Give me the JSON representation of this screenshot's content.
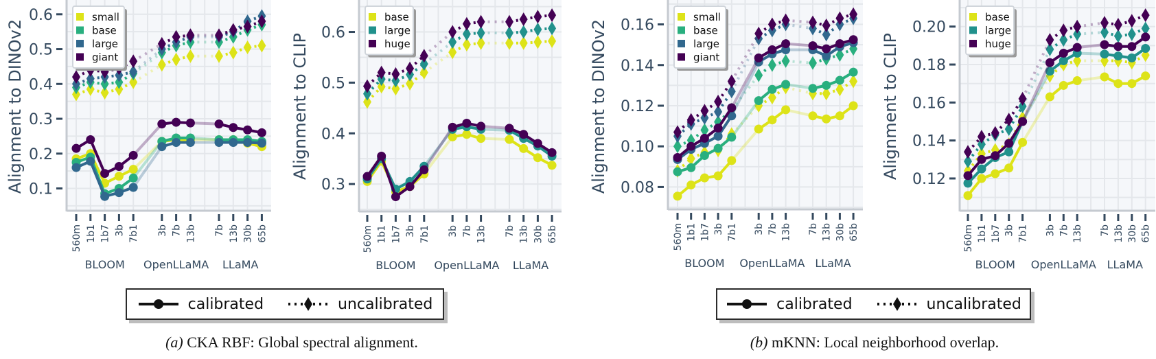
{
  "legend": {
    "calibrated": "calibrated",
    "uncalibrated": "uncalibrated"
  },
  "captions": [
    {
      "tag": "(a)",
      "text": "CKA RBF: Global spectral alignment."
    },
    {
      "tag": "(b)",
      "text": "mKNN: Local neighborhood overlap."
    }
  ],
  "chart_data": [
    {
      "type": "line",
      "ylabel": "Alignment to DINOv2",
      "ylim": [
        0.036,
        0.641
      ],
      "yticks": [
        "0.1",
        "0.2",
        "0.3",
        "0.4",
        "0.5",
        "0.6"
      ],
      "grid": true,
      "legend_position": "top-left",
      "groups": [
        {
          "name": "BLOOM",
          "categories": [
            "560m",
            "1b1",
            "1b7",
            "3b",
            "7b1"
          ]
        },
        {
          "name": "OpenLLaMA",
          "categories": [
            "3b",
            "7b",
            "13b"
          ]
        },
        {
          "name": "LLaMA",
          "categories": [
            "7b",
            "13b",
            "30b",
            "65b"
          ]
        }
      ],
      "series": [
        {
          "name": "small",
          "color": "#dde318",
          "calibrated": [
            0.185,
            0.2,
            0.115,
            0.135,
            0.155,
            0.235,
            0.24,
            0.24,
            0.24,
            0.24,
            0.23,
            0.22
          ],
          "uncalibrated": [
            0.37,
            0.385,
            0.375,
            0.385,
            0.405,
            0.455,
            0.47,
            0.48,
            0.48,
            0.49,
            0.505,
            0.51
          ]
        },
        {
          "name": "base",
          "color": "#29af7f",
          "calibrated": [
            0.175,
            0.19,
            0.085,
            0.1,
            0.13,
            0.235,
            0.245,
            0.245,
            0.24,
            0.24,
            0.24,
            0.235
          ],
          "uncalibrated": [
            0.39,
            0.405,
            0.4,
            0.405,
            0.43,
            0.49,
            0.51,
            0.52,
            0.52,
            0.535,
            0.555,
            0.57
          ]
        },
        {
          "name": "large",
          "color": "#31688e",
          "calibrated": [
            0.16,
            0.178,
            0.077,
            0.088,
            0.103,
            0.22,
            0.232,
            0.232,
            0.232,
            0.232,
            0.232,
            0.23
          ],
          "uncalibrated": [
            0.4,
            0.415,
            0.42,
            0.425,
            0.435,
            0.5,
            0.52,
            0.535,
            0.535,
            0.55,
            0.58,
            0.595
          ]
        },
        {
          "name": "giant",
          "color": "#440154",
          "calibrated": [
            0.215,
            0.24,
            0.143,
            0.163,
            0.195,
            0.285,
            0.29,
            0.288,
            0.285,
            0.275,
            0.268,
            0.26
          ],
          "uncalibrated": [
            0.42,
            0.44,
            0.435,
            0.445,
            0.465,
            0.515,
            0.535,
            0.54,
            0.54,
            0.555,
            0.565,
            0.58
          ]
        }
      ]
    },
    {
      "type": "line",
      "ylabel": "Alignment to CLIP",
      "ylim": [
        0.246,
        0.663
      ],
      "yticks": [
        "0.3",
        "0.4",
        "0.5",
        "0.6"
      ],
      "grid": true,
      "legend_position": "top-left",
      "groups": [
        {
          "name": "BLOOM",
          "categories": [
            "560m",
            "1b1",
            "1b7",
            "3b",
            "7b1"
          ]
        },
        {
          "name": "OpenLLaMA",
          "categories": [
            "3b",
            "7b",
            "13b"
          ]
        },
        {
          "name": "LLaMA",
          "categories": [
            "7b",
            "13b",
            "30b",
            "65b"
          ]
        }
      ],
      "series": [
        {
          "name": "base",
          "color": "#dde318",
          "calibrated": [
            0.305,
            0.345,
            0.285,
            0.295,
            0.32,
            0.393,
            0.398,
            0.39,
            0.388,
            0.37,
            0.352,
            0.337
          ],
          "uncalibrated": [
            0.462,
            0.492,
            0.488,
            0.498,
            0.52,
            0.56,
            0.575,
            0.578,
            0.578,
            0.578,
            0.58,
            0.582
          ]
        },
        {
          "name": "large",
          "color": "#21918c",
          "calibrated": [
            0.31,
            0.35,
            0.29,
            0.305,
            0.335,
            0.408,
            0.413,
            0.408,
            0.406,
            0.39,
            0.375,
            0.355
          ],
          "uncalibrated": [
            0.478,
            0.507,
            0.504,
            0.516,
            0.537,
            0.58,
            0.596,
            0.598,
            0.598,
            0.6,
            0.605,
            0.607
          ]
        },
        {
          "name": "huge",
          "color": "#440154",
          "calibrated": [
            0.315,
            0.355,
            0.275,
            0.295,
            0.328,
            0.412,
            0.42,
            0.414,
            0.41,
            0.398,
            0.38,
            0.362
          ],
          "uncalibrated": [
            0.493,
            0.52,
            0.517,
            0.528,
            0.553,
            0.6,
            0.616,
            0.62,
            0.62,
            0.625,
            0.63,
            0.633
          ]
        }
      ]
    },
    {
      "type": "line",
      "ylabel": "Alignment to DINOv2",
      "ylim": [
        0.069,
        0.172
      ],
      "yticks": [
        "0.08",
        "0.10",
        "0.12",
        "0.14",
        "0.16"
      ],
      "grid": true,
      "legend_position": "top-left",
      "groups": [
        {
          "name": "BLOOM",
          "categories": [
            "560m",
            "1b1",
            "1b7",
            "3b",
            "7b1"
          ]
        },
        {
          "name": "OpenLLaMA",
          "categories": [
            "3b",
            "7b",
            "13b"
          ]
        },
        {
          "name": "LLaMA",
          "categories": [
            "7b",
            "13b",
            "30b",
            "65b"
          ]
        }
      ],
      "series": [
        {
          "name": "small",
          "color": "#dde318",
          "calibrated": [
            0.0755,
            0.081,
            0.0845,
            0.0855,
            0.093,
            0.1085,
            0.113,
            0.118,
            0.115,
            0.1135,
            0.115,
            0.12
          ],
          "uncalibrated": [
            0.088,
            0.094,
            0.097,
            0.098,
            0.106,
            0.12,
            0.124,
            0.129,
            0.126,
            0.126,
            0.128,
            0.132
          ]
        },
        {
          "name": "base",
          "color": "#29af7f",
          "calibrated": [
            0.0875,
            0.0895,
            0.0955,
            0.099,
            0.1045,
            0.1225,
            0.128,
            0.1305,
            0.1285,
            0.13,
            0.1325,
            0.1365
          ],
          "uncalibrated": [
            0.1,
            0.103,
            0.108,
            0.112,
            0.118,
            0.135,
            0.14,
            0.142,
            0.141,
            0.143,
            0.145,
            0.148
          ]
        },
        {
          "name": "large",
          "color": "#31688e",
          "calibrated": [
            0.0935,
            0.0985,
            0.1015,
            0.105,
            0.115,
            0.1415,
            0.1455,
            0.1475,
            0.1475,
            0.1445,
            0.149,
            0.151
          ],
          "uncalibrated": [
            0.105,
            0.111,
            0.114,
            0.117,
            0.127,
            0.153,
            0.157,
            0.16,
            0.158,
            0.155,
            0.16,
            0.163
          ]
        },
        {
          "name": "giant",
          "color": "#440154",
          "calibrated": [
            0.0945,
            0.1,
            0.104,
            0.109,
            0.119,
            0.1435,
            0.1475,
            0.1505,
            0.1495,
            0.148,
            0.1505,
            0.1525
          ],
          "uncalibrated": [
            0.107,
            0.113,
            0.1175,
            0.122,
            0.132,
            0.1555,
            0.16,
            0.162,
            0.161,
            0.1595,
            0.163,
            0.165
          ]
        }
      ]
    },
    {
      "type": "line",
      "ylabel": "Alignment to CLIP",
      "ylim": [
        0.103,
        0.214
      ],
      "yticks": [
        "0.12",
        "0.14",
        "0.16",
        "0.18",
        "0.20"
      ],
      "grid": true,
      "legend_position": "top-left",
      "groups": [
        {
          "name": "BLOOM",
          "categories": [
            "560m",
            "1b1",
            "1b7",
            "3b",
            "7b1"
          ]
        },
        {
          "name": "OpenLLaMA",
          "categories": [
            "3b",
            "7b",
            "13b"
          ]
        },
        {
          "name": "LLaMA",
          "categories": [
            "7b",
            "13b",
            "30b",
            "65b"
          ]
        }
      ],
      "series": [
        {
          "name": "base",
          "color": "#dde318",
          "calibrated": [
            0.111,
            0.12,
            0.1225,
            0.1255,
            0.139,
            0.163,
            0.169,
            0.1715,
            0.1735,
            0.17,
            0.17,
            0.174
          ],
          "uncalibrated": [
            0.124,
            0.133,
            0.135,
            0.138,
            0.152,
            0.174,
            0.18,
            0.182,
            0.182,
            0.182,
            0.181,
            0.185
          ]
        },
        {
          "name": "large",
          "color": "#21918c",
          "calibrated": [
            0.1175,
            0.125,
            0.131,
            0.134,
            0.15,
            0.1765,
            0.182,
            0.186,
            0.1855,
            0.1845,
            0.1835,
            0.1885
          ],
          "uncalibrated": [
            0.129,
            0.138,
            0.143,
            0.146,
            0.158,
            0.188,
            0.193,
            0.196,
            0.197,
            0.195,
            0.196,
            0.199
          ]
        },
        {
          "name": "huge",
          "color": "#440154",
          "calibrated": [
            0.1215,
            0.13,
            0.132,
            0.1385,
            0.15,
            0.181,
            0.186,
            0.189,
            0.1905,
            0.1895,
            0.1895,
            0.1945
          ],
          "uncalibrated": [
            0.134,
            0.142,
            0.144,
            0.151,
            0.162,
            0.193,
            0.198,
            0.2,
            0.202,
            0.201,
            0.203,
            0.206
          ]
        }
      ]
    }
  ]
}
